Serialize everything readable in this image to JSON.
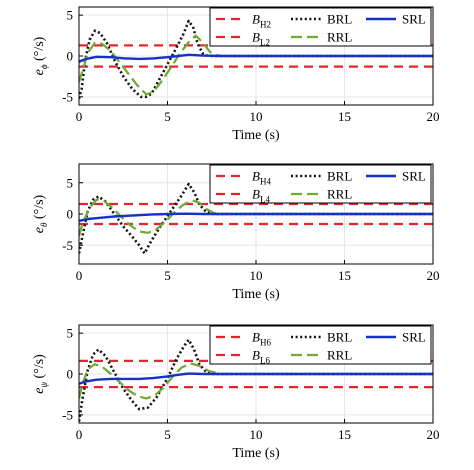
{
  "chart_data": [
    {
      "type": "line",
      "ylabel_main": "e",
      "ylabel_sub": "ϕ",
      "ylabel_unit": "(°/s)",
      "xlabel": "Time (s)",
      "xlim": [
        0,
        20
      ],
      "ylim": [
        -6,
        6
      ],
      "xticks": [
        "0",
        "5",
        "10",
        "15",
        "20"
      ],
      "yticks": [
        "5",
        "0",
        "-5"
      ],
      "ytick_values": [
        5,
        0,
        -5
      ],
      "grid": true,
      "legend_position": "top-right",
      "series": [
        {
          "name": "B",
          "name_sub": "H2",
          "style": "bound",
          "values": [
            [
              0,
              1.3
            ],
            [
              20,
              1.3
            ]
          ]
        },
        {
          "name": "B",
          "name_sub": "L2",
          "style": "bound",
          "values": [
            [
              0,
              -1.3
            ],
            [
              20,
              -1.3
            ]
          ]
        },
        {
          "name": "BRL",
          "style": "brl",
          "values": [
            [
              0,
              -5.2
            ],
            [
              0.15,
              -4.0
            ],
            [
              0.35,
              -0.5
            ],
            [
              0.6,
              2.0
            ],
            [
              0.9,
              3.1
            ],
            [
              1.2,
              2.8
            ],
            [
              1.6,
              1.5
            ],
            [
              2.0,
              -0.5
            ],
            [
              2.5,
              -2.5
            ],
            [
              3.0,
              -4.0
            ],
            [
              3.5,
              -5.0
            ],
            [
              3.8,
              -5.0
            ],
            [
              4.1,
              -4.6
            ],
            [
              4.5,
              -3.0
            ],
            [
              5.0,
              -1.0
            ],
            [
              5.5,
              1.0
            ],
            [
              5.9,
              2.7
            ],
            [
              6.2,
              4.3
            ],
            [
              6.45,
              3.5
            ],
            [
              6.7,
              1.5
            ],
            [
              7.0,
              0.3
            ],
            [
              7.3,
              0.0
            ],
            [
              20,
              0.0
            ]
          ]
        },
        {
          "name": "RRL",
          "style": "rrl",
          "values": [
            [
              0,
              -3.2
            ],
            [
              0.2,
              -1.8
            ],
            [
              0.5,
              0.4
            ],
            [
              0.9,
              1.6
            ],
            [
              1.3,
              1.5
            ],
            [
              1.8,
              0.6
            ],
            [
              2.3,
              -0.8
            ],
            [
              2.8,
              -2.2
            ],
            [
              3.3,
              -3.6
            ],
            [
              3.8,
              -4.7
            ],
            [
              4.2,
              -4.4
            ],
            [
              4.7,
              -3.0
            ],
            [
              5.2,
              -1.4
            ],
            [
              5.7,
              0.3
            ],
            [
              6.2,
              1.7
            ],
            [
              6.6,
              2.5
            ],
            [
              7.0,
              1.6
            ],
            [
              7.4,
              0.5
            ],
            [
              7.8,
              0.1
            ],
            [
              8.2,
              0.0
            ],
            [
              20,
              0.0
            ]
          ]
        },
        {
          "name": "SRL",
          "style": "srl",
          "values": [
            [
              0,
              -0.7
            ],
            [
              0.4,
              -0.35
            ],
            [
              1.0,
              -0.1
            ],
            [
              1.8,
              -0.15
            ],
            [
              2.6,
              -0.3
            ],
            [
              3.4,
              -0.35
            ],
            [
              4.2,
              -0.3
            ],
            [
              5.0,
              -0.15
            ],
            [
              5.6,
              0.0
            ],
            [
              6.2,
              0.15
            ],
            [
              7.0,
              0.05
            ],
            [
              8.0,
              0.0
            ],
            [
              20,
              0.0
            ]
          ]
        }
      ]
    },
    {
      "type": "line",
      "ylabel_main": "e",
      "ylabel_sub": "θ",
      "ylabel_unit": "(°/s)",
      "xlabel": "Time (s)",
      "xlim": [
        0,
        20
      ],
      "ylim": [
        -8,
        8
      ],
      "xticks": [
        "0",
        "5",
        "10",
        "15",
        "20"
      ],
      "yticks": [
        "5",
        "0",
        "-5"
      ],
      "ytick_values": [
        5,
        0,
        -5
      ],
      "grid": true,
      "legend_position": "top-right",
      "series": [
        {
          "name": "B",
          "name_sub": "H4",
          "style": "bound",
          "values": [
            [
              0,
              1.6
            ],
            [
              20,
              1.6
            ]
          ]
        },
        {
          "name": "B",
          "name_sub": "L4",
          "style": "bound",
          "values": [
            [
              0,
              -1.6
            ],
            [
              20,
              -1.6
            ]
          ]
        },
        {
          "name": "BRL",
          "style": "brl",
          "values": [
            [
              0,
              -6.3
            ],
            [
              0.2,
              -3.5
            ],
            [
              0.5,
              0.5
            ],
            [
              0.8,
              2.3
            ],
            [
              1.1,
              2.8
            ],
            [
              1.5,
              2.0
            ],
            [
              2.0,
              0.0
            ],
            [
              2.5,
              -2.0
            ],
            [
              3.0,
              -3.6
            ],
            [
              3.4,
              -5.0
            ],
            [
              3.7,
              -6.3
            ],
            [
              4.1,
              -4.2
            ],
            [
              4.6,
              -2.0
            ],
            [
              5.2,
              0.5
            ],
            [
              5.8,
              3.0
            ],
            [
              6.2,
              4.8
            ],
            [
              6.5,
              3.5
            ],
            [
              6.8,
              1.5
            ],
            [
              7.2,
              0.3
            ],
            [
              7.6,
              0.0
            ],
            [
              20,
              0.0
            ]
          ]
        },
        {
          "name": "RRL",
          "style": "rrl",
          "values": [
            [
              0,
              -3.5
            ],
            [
              0.2,
              -1.5
            ],
            [
              0.6,
              1.0
            ],
            [
              1.0,
              2.3
            ],
            [
              1.4,
              2.1
            ],
            [
              1.9,
              1.0
            ],
            [
              2.4,
              -0.5
            ],
            [
              2.9,
              -1.8
            ],
            [
              3.4,
              -2.8
            ],
            [
              3.9,
              -3.0
            ],
            [
              4.4,
              -2.4
            ],
            [
              4.9,
              -1.2
            ],
            [
              5.4,
              0.3
            ],
            [
              5.9,
              1.5
            ],
            [
              6.4,
              2.2
            ],
            [
              6.8,
              1.8
            ],
            [
              7.2,
              0.8
            ],
            [
              7.6,
              0.2
            ],
            [
              8.0,
              0.0
            ],
            [
              20,
              0.0
            ]
          ]
        },
        {
          "name": "SRL",
          "style": "srl",
          "values": [
            [
              0,
              -1.1
            ],
            [
              0.5,
              -0.8
            ],
            [
              1.2,
              -0.6
            ],
            [
              2.0,
              -0.4
            ],
            [
              3.0,
              -0.25
            ],
            [
              4.0,
              -0.1
            ],
            [
              5.0,
              0.0
            ],
            [
              6.0,
              0.05
            ],
            [
              7.0,
              0.0
            ],
            [
              20,
              0.0
            ]
          ]
        }
      ]
    },
    {
      "type": "line",
      "ylabel_main": "e",
      "ylabel_sub": "ψ",
      "ylabel_unit": "(°/s)",
      "xlabel": "Time (s)",
      "xlim": [
        0,
        20
      ],
      "ylim": [
        -6,
        6
      ],
      "xticks": [
        "0",
        "5",
        "10",
        "15",
        "20"
      ],
      "yticks": [
        "5",
        "0",
        "-5"
      ],
      "ytick_values": [
        5,
        0,
        -5
      ],
      "grid": true,
      "legend_position": "top-right",
      "series": [
        {
          "name": "B",
          "name_sub": "H6",
          "style": "bound",
          "values": [
            [
              0,
              1.6
            ],
            [
              20,
              1.6
            ]
          ]
        },
        {
          "name": "B",
          "name_sub": "L6",
          "style": "bound",
          "values": [
            [
              0,
              -1.6
            ],
            [
              20,
              -1.6
            ]
          ]
        },
        {
          "name": "BRL",
          "style": "brl",
          "values": [
            [
              0,
              -5.8
            ],
            [
              0.2,
              -3.0
            ],
            [
              0.5,
              0.5
            ],
            [
              0.8,
              2.4
            ],
            [
              1.1,
              3.0
            ],
            [
              1.5,
              2.2
            ],
            [
              2.0,
              0.2
            ],
            [
              2.5,
              -1.8
            ],
            [
              3.0,
              -3.3
            ],
            [
              3.4,
              -4.3
            ],
            [
              3.9,
              -4.1
            ],
            [
              4.4,
              -2.8
            ],
            [
              5.0,
              -0.5
            ],
            [
              5.5,
              1.8
            ],
            [
              5.9,
              3.3
            ],
            [
              6.2,
              4.2
            ],
            [
              6.5,
              3.0
            ],
            [
              6.8,
              1.2
            ],
            [
              7.2,
              0.2
            ],
            [
              7.6,
              0.0
            ],
            [
              20,
              0.0
            ]
          ]
        },
        {
          "name": "RRL",
          "style": "rrl",
          "values": [
            [
              0,
              -3.0
            ],
            [
              0.2,
              -1.2
            ],
            [
              0.5,
              0.6
            ],
            [
              0.9,
              1.2
            ],
            [
              1.3,
              0.9
            ],
            [
              1.8,
              0.0
            ],
            [
              2.3,
              -1.0
            ],
            [
              2.8,
              -2.0
            ],
            [
              3.3,
              -2.7
            ],
            [
              3.8,
              -3.0
            ],
            [
              4.3,
              -2.6
            ],
            [
              4.8,
              -1.6
            ],
            [
              5.3,
              -0.3
            ],
            [
              5.8,
              0.8
            ],
            [
              6.3,
              1.3
            ],
            [
              6.8,
              1.0
            ],
            [
              7.3,
              0.4
            ],
            [
              7.8,
              0.1
            ],
            [
              8.2,
              0.0
            ],
            [
              20,
              0.0
            ]
          ]
        },
        {
          "name": "SRL",
          "style": "srl",
          "values": [
            [
              0,
              -1.2
            ],
            [
              0.4,
              -0.9
            ],
            [
              1.0,
              -0.7
            ],
            [
              1.8,
              -0.6
            ],
            [
              2.6,
              -0.6
            ],
            [
              3.4,
              -0.6
            ],
            [
              4.2,
              -0.5
            ],
            [
              5.0,
              -0.3
            ],
            [
              5.6,
              -0.1
            ],
            [
              6.2,
              0.05
            ],
            [
              7.0,
              0.0
            ],
            [
              20,
              0.0
            ]
          ]
        }
      ]
    }
  ],
  "colors": {
    "bound": "#e3262a",
    "brl": "#111111",
    "rrl": "#6aab34",
    "srl": "#1432c8",
    "grid": "#e6e6e6",
    "axis": "#000000"
  }
}
